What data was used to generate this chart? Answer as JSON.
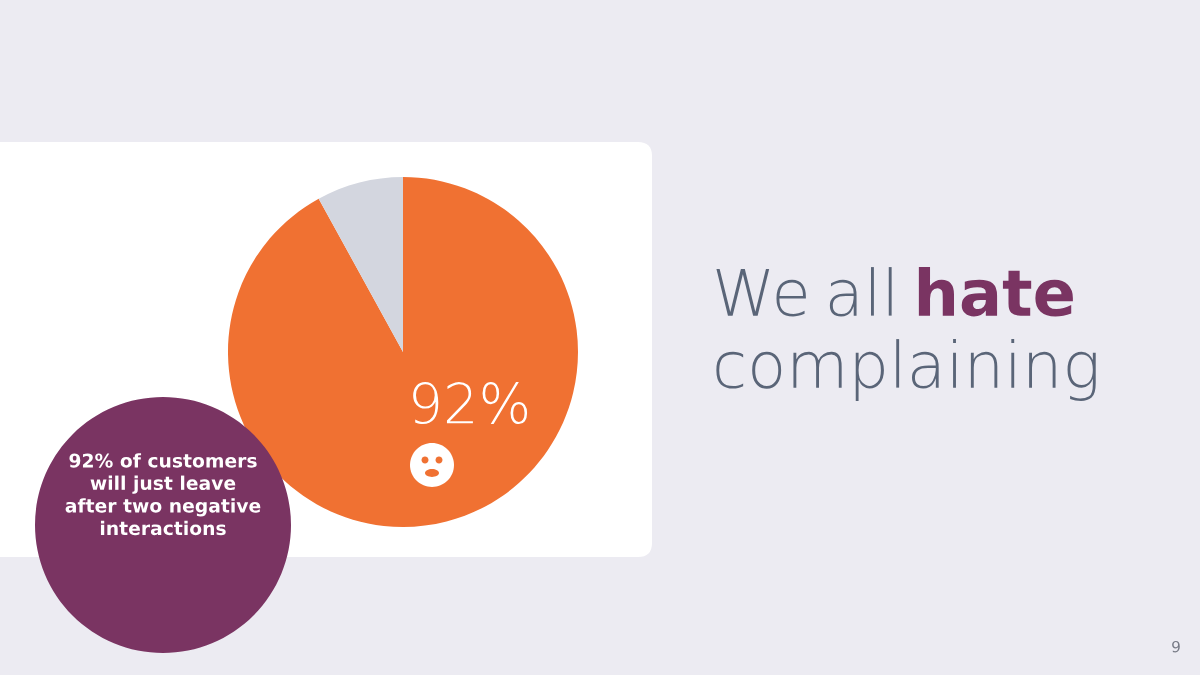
{
  "chart_data": {
    "type": "pie",
    "title": "We all hate complaining",
    "categories": [
      null,
      null
    ],
    "values": [
      92,
      8
    ],
    "colors": [
      "#f07132",
      "#d3d6df"
    ],
    "value_labels": [
      "92%",
      null
    ],
    "annotations": [
      "92% of customers will just leave after two negative interactions",
      "9"
    ]
  }
}
